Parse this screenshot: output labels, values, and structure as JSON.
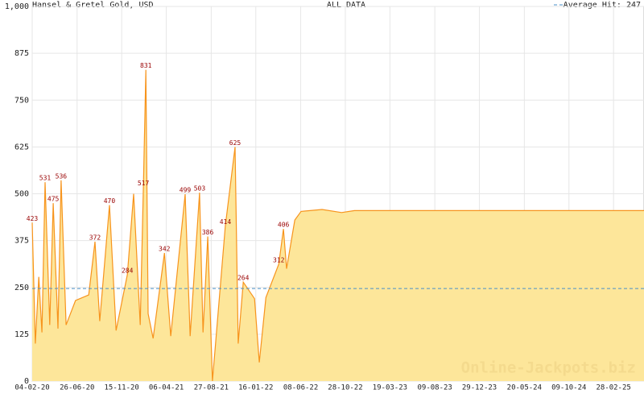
{
  "chart_data": {
    "type": "area",
    "title": "Hansel & Gretel Gold, USD",
    "subtitle": "ALL DATA",
    "watermark": "Online-Jackpots.biz",
    "average": {
      "label": "Average Hit: 247",
      "value": 247,
      "color": "#4a90c8"
    },
    "grid": true,
    "xlim": [
      "2020-02-04",
      "2025-06-05"
    ],
    "xticks": [
      {
        "value": "2020-02-04",
        "label": "04-02-20"
      },
      {
        "value": "2020-06-26",
        "label": "26-06-20"
      },
      {
        "value": "2020-11-15",
        "label": "15-11-20"
      },
      {
        "value": "2021-04-06",
        "label": "06-04-21"
      },
      {
        "value": "2021-08-27",
        "label": "27-08-21"
      },
      {
        "value": "2022-01-16",
        "label": "16-01-22"
      },
      {
        "value": "2022-06-08",
        "label": "08-06-22"
      },
      {
        "value": "2022-10-28",
        "label": "28-10-22"
      },
      {
        "value": "2023-03-19",
        "label": "19-03-23"
      },
      {
        "value": "2023-08-09",
        "label": "09-08-23"
      },
      {
        "value": "2023-12-29",
        "label": "29-12-23"
      },
      {
        "value": "2024-05-20",
        "label": "20-05-24"
      },
      {
        "value": "2024-10-09",
        "label": "09-10-24"
      },
      {
        "value": "2025-02-28",
        "label": "28-02-25"
      }
    ],
    "ylim": [
      0,
      1000
    ],
    "yticks": [
      0,
      125,
      250,
      375,
      500,
      625,
      750,
      875,
      {
        "value": 1000,
        "label": "1,000"
      }
    ],
    "series": [
      {
        "color": "#f7941d",
        "fill": "#fde69a",
        "x": [
          "2020-02-04",
          "2020-02-14",
          "2020-02-25",
          "2020-03-06",
          "2020-03-16",
          "2020-03-31",
          "2020-04-11",
          "2020-04-26",
          "2020-05-06",
          "2020-05-22",
          "2020-06-21",
          "2020-08-02",
          "2020-08-22",
          "2020-09-06",
          "2020-10-07",
          "2020-10-28",
          "2020-12-03",
          "2020-12-23",
          "2021-01-13",
          "2021-01-23",
          "2021-01-31",
          "2021-02-07",
          "2021-02-23",
          "2021-03-31",
          "2021-04-20",
          "2021-06-05",
          "2021-06-21",
          "2021-07-21",
          "2021-08-01",
          "2021-08-16",
          "2021-08-31",
          "2021-10-11",
          "2021-11-11",
          "2021-11-21",
          "2021-12-07",
          "2022-01-12",
          "2022-01-27",
          "2022-02-17",
          "2022-03-30",
          "2022-04-14",
          "2022-04-24",
          "2022-05-20",
          "2022-06-09",
          "2022-08-15",
          "2022-10-16",
          "2022-11-26",
          "2025-06-05"
        ],
        "values": [
          423,
          100,
          278,
          130,
          531,
          150,
          475,
          140,
          536,
          150,
          215,
          230,
          372,
          160,
          470,
          135,
          284,
          500,
          150,
          517,
          831,
          180,
          114,
          342,
          120,
          499,
          120,
          503,
          130,
          386,
          0,
          414,
          625,
          100,
          264,
          220,
          50,
          223,
          312,
          406,
          300,
          430,
          453,
          458,
          450,
          455,
          455
        ]
      }
    ],
    "peaks": [
      {
        "x": "2020-02-04",
        "value": 423
      },
      {
        "x": "2020-03-16",
        "value": 531
      },
      {
        "x": "2020-04-11",
        "value": 475
      },
      {
        "x": "2020-05-06",
        "value": 536
      },
      {
        "x": "2020-08-22",
        "value": 372
      },
      {
        "x": "2020-10-07",
        "value": 470
      },
      {
        "x": "2020-12-03",
        "value": 284
      },
      {
        "x": "2021-01-23",
        "value": 517
      },
      {
        "x": "2021-01-31",
        "value": 831
      },
      {
        "x": "2021-03-31",
        "value": 342
      },
      {
        "x": "2021-06-05",
        "value": 499
      },
      {
        "x": "2021-07-21",
        "value": 503
      },
      {
        "x": "2021-08-16",
        "value": 386
      },
      {
        "x": "2021-10-11",
        "value": 414
      },
      {
        "x": "2021-11-11",
        "value": 625
      },
      {
        "x": "2021-12-07",
        "value": 264
      },
      {
        "x": "2022-03-30",
        "value": 312
      },
      {
        "x": "2022-04-14",
        "value": 406
      }
    ]
  }
}
